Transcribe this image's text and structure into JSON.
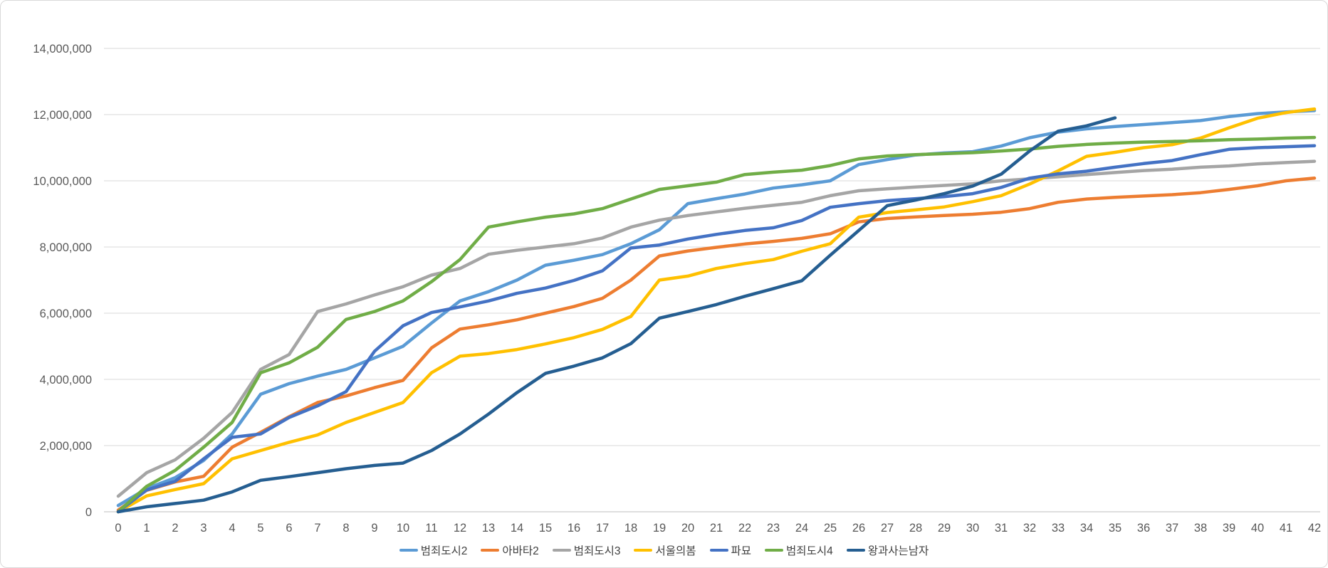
{
  "chart_data": {
    "type": "line",
    "title": "",
    "xlabel": "",
    "ylabel": "",
    "ylim": [
      0,
      14000000
    ],
    "y_tick_step": 2000000,
    "y_ticks": [
      "0",
      "2,000,000",
      "4,000,000",
      "6,000,000",
      "8,000,000",
      "10,000,000",
      "12,000,000",
      "14,000,000"
    ],
    "x_ticks": [
      "0",
      "1",
      "2",
      "3",
      "4",
      "5",
      "6",
      "7",
      "8",
      "9",
      "10",
      "11",
      "12",
      "13",
      "14",
      "15",
      "16",
      "17",
      "18",
      "19",
      "20",
      "21",
      "22",
      "23",
      "24",
      "25",
      "26",
      "27",
      "28",
      "29",
      "30",
      "31",
      "32",
      "33",
      "34",
      "35",
      "36",
      "37",
      "38",
      "39",
      "40",
      "41",
      "42"
    ],
    "grid": true,
    "legend_position": "bottom",
    "series": [
      {
        "name": "범죄도시2",
        "color": "#5B9BD5",
        "values": [
          190000,
          700000,
          1030000,
          1550000,
          2350000,
          3550000,
          3870000,
          4100000,
          4300000,
          4650000,
          5000000,
          5700000,
          6370000,
          6650000,
          7000000,
          7450000,
          7600000,
          7770000,
          8100000,
          8520000,
          9310000,
          9460000,
          9600000,
          9780000,
          9880000,
          10000000,
          10490000,
          10640000,
          10780000,
          10840000,
          10880000,
          11050000,
          11300000,
          11470000,
          11570000,
          11640000,
          11700000,
          11760000,
          11820000,
          11940000,
          12030000,
          12080000,
          12120000
        ]
      },
      {
        "name": "아바타2",
        "color": "#ED7D31",
        "values": [
          50000,
          650000,
          900000,
          1070000,
          1950000,
          2400000,
          2870000,
          3300000,
          3500000,
          3750000,
          3970000,
          4950000,
          5520000,
          5650000,
          5800000,
          6000000,
          6200000,
          6450000,
          7000000,
          7730000,
          7880000,
          7990000,
          8090000,
          8170000,
          8260000,
          8400000,
          8760000,
          8860000,
          8910000,
          8950000,
          8990000,
          9050000,
          9160000,
          9350000,
          9450000,
          9500000,
          9540000,
          9580000,
          9640000,
          9740000,
          9850000,
          10000000,
          10080000
        ]
      },
      {
        "name": "범죄도시3",
        "color": "#A5A5A5",
        "values": [
          470000,
          1180000,
          1570000,
          2220000,
          3000000,
          4300000,
          4750000,
          6050000,
          6280000,
          6550000,
          6800000,
          7150000,
          7350000,
          7780000,
          7900000,
          8000000,
          8100000,
          8270000,
          8600000,
          8810000,
          8950000,
          9060000,
          9170000,
          9260000,
          9350000,
          9550000,
          9700000,
          9760000,
          9810000,
          9860000,
          9910000,
          10000000,
          10060000,
          10120000,
          10190000,
          10250000,
          10310000,
          10350000,
          10410000,
          10450000,
          10510000,
          10550000,
          10590000
        ]
      },
      {
        "name": "서울의봄",
        "color": "#FFC000",
        "values": [
          0,
          480000,
          670000,
          850000,
          1600000,
          1850000,
          2100000,
          2320000,
          2700000,
          3000000,
          3300000,
          4200000,
          4700000,
          4780000,
          4900000,
          5070000,
          5260000,
          5510000,
          5900000,
          7000000,
          7120000,
          7350000,
          7500000,
          7620000,
          7870000,
          8100000,
          8900000,
          9040000,
          9120000,
          9210000,
          9370000,
          9550000,
          9900000,
          10300000,
          10740000,
          10860000,
          11000000,
          11090000,
          11290000,
          11600000,
          11890000,
          12060000,
          12170000
        ]
      },
      {
        "name": "파묘",
        "color": "#4472C4",
        "values": [
          0,
          660000,
          920000,
          1600000,
          2250000,
          2350000,
          2850000,
          3200000,
          3630000,
          4850000,
          5620000,
          6020000,
          6190000,
          6370000,
          6600000,
          6760000,
          6990000,
          7280000,
          7970000,
          8060000,
          8240000,
          8380000,
          8500000,
          8580000,
          8800000,
          9200000,
          9310000,
          9400000,
          9460000,
          9520000,
          9610000,
          9800000,
          10080000,
          10210000,
          10290000,
          10410000,
          10520000,
          10610000,
          10790000,
          10950000,
          11000000,
          11030000,
          11060000
        ]
      },
      {
        "name": "범죄도시4",
        "color": "#70AD47",
        "values": [
          0,
          770000,
          1250000,
          1950000,
          2700000,
          4200000,
          4500000,
          4970000,
          5810000,
          6050000,
          6370000,
          6950000,
          7620000,
          8600000,
          8760000,
          8900000,
          9000000,
          9160000,
          9450000,
          9740000,
          9850000,
          9960000,
          10190000,
          10260000,
          10320000,
          10460000,
          10660000,
          10750000,
          10790000,
          10820000,
          10850000,
          10900000,
          10960000,
          11040000,
          11100000,
          11140000,
          11170000,
          11190000,
          11210000,
          11240000,
          11260000,
          11290000,
          11310000
        ]
      },
      {
        "name": "왕과사는남자",
        "color": "#255E91",
        "values": [
          0,
          150000,
          250000,
          350000,
          600000,
          950000,
          1060000,
          1180000,
          1300000,
          1400000,
          1470000,
          1850000,
          2350000,
          2950000,
          3600000,
          4180000,
          4400000,
          4650000,
          5080000,
          5850000,
          6050000,
          6260000,
          6510000,
          6740000,
          6980000,
          7750000,
          8500000,
          9250000,
          9420000,
          9610000,
          9840000,
          10200000,
          10900000,
          11500000,
          11660000,
          11900000
        ]
      }
    ]
  }
}
